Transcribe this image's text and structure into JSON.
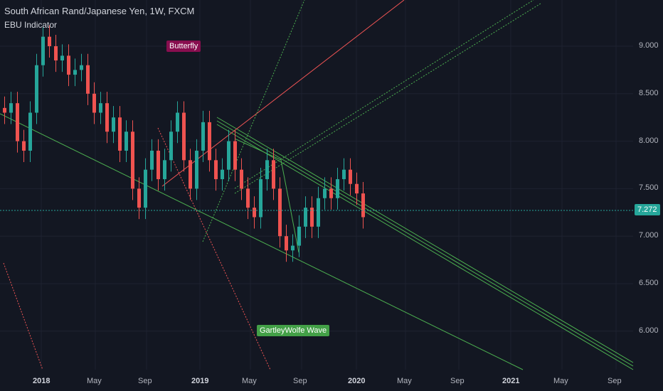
{
  "header": {
    "title": "South African Rand/Japanese Yen, 1W, FXCM",
    "indicator": "EBU Indicator"
  },
  "annotations": {
    "butterfly": "Butterfly",
    "gartley": "GartleyWolfe Wave"
  },
  "price_axis": {
    "ticks": [
      "9.000",
      "8.500",
      "8.000",
      "7.500",
      "7.000",
      "6.500",
      "6.000"
    ],
    "last_price": "7.272",
    "last_price_color": "#26a69a"
  },
  "time_axis": {
    "ticks": [
      {
        "label": "2018",
        "bold": true
      },
      {
        "label": "May",
        "bold": false
      },
      {
        "label": "Sep",
        "bold": false
      },
      {
        "label": "2019",
        "bold": true
      },
      {
        "label": "May",
        "bold": false
      },
      {
        "label": "Sep",
        "bold": false
      },
      {
        "label": "2020",
        "bold": true
      },
      {
        "label": "May",
        "bold": false
      },
      {
        "label": "Sep",
        "bold": false
      },
      {
        "label": "2021",
        "bold": true
      },
      {
        "label": "May",
        "bold": false
      },
      {
        "label": "Sep",
        "bold": false
      }
    ]
  },
  "colors": {
    "up": "#26a69a",
    "down": "#ef5350",
    "pattern_line": "#4caf50",
    "trend_line": "#f05454"
  },
  "chart_data": {
    "type": "candlestick",
    "ylim": [
      5.6,
      9.4
    ],
    "close_series": [
      8.3,
      8.4,
      8.0,
      7.9,
      8.3,
      8.8,
      9.1,
      9.0,
      8.85,
      8.9,
      8.7,
      8.75,
      8.8,
      8.5,
      8.3,
      8.4,
      8.1,
      8.25,
      7.9,
      8.1,
      7.5,
      7.3,
      7.7,
      7.9,
      7.6,
      7.8,
      8.1,
      8.3,
      7.8,
      7.5,
      7.9,
      8.2,
      7.8,
      7.6,
      7.7,
      8.0,
      7.7,
      7.5,
      7.3,
      7.2,
      7.6,
      7.8,
      7.5,
      7.0,
      6.85,
      6.9,
      7.1,
      7.3,
      7.1,
      7.4,
      7.5,
      7.4,
      7.6,
      7.7,
      7.55,
      7.45,
      7.2
    ]
  }
}
